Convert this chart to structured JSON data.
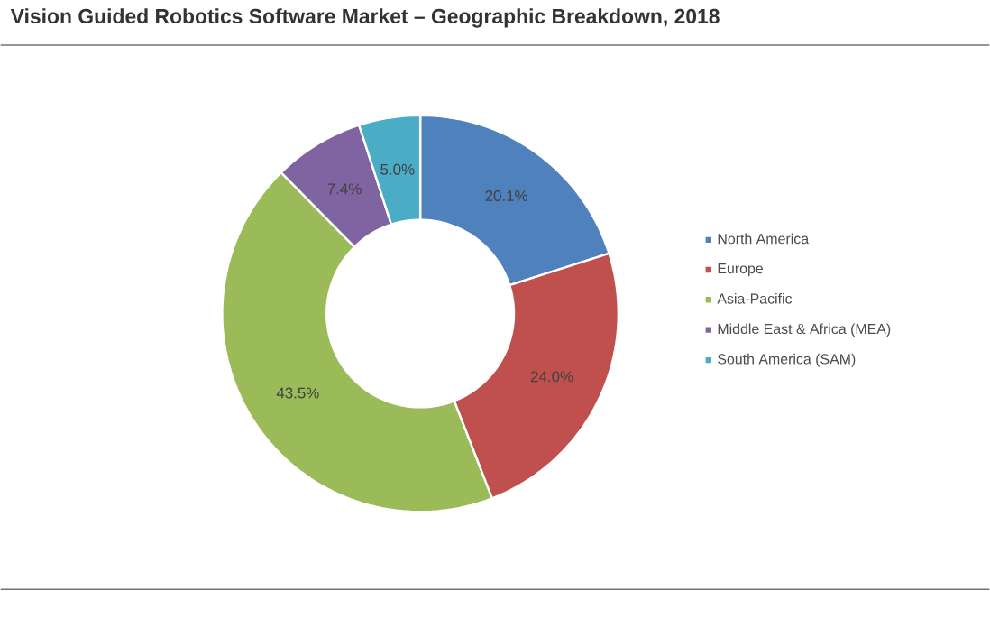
{
  "chart_data": {
    "type": "donut",
    "title": "Vision Guided Robotics Software Market – Geographic Breakdown, 2018",
    "categories": [
      "North America",
      "Europe",
      "Asia-Pacific",
      "Middle East & Africa (MEA)",
      "South America (SAM)"
    ],
    "values": [
      20.1,
      24.0,
      43.5,
      7.4,
      5.0
    ],
    "colors": [
      "#4f81bd",
      "#c0504d",
      "#9bbb59",
      "#8064a2",
      "#4bacc6"
    ],
    "value_labels": [
      "20.1%",
      "24.0%",
      "43.5%",
      "7.4%",
      "5.0%"
    ],
    "legend": "right"
  }
}
